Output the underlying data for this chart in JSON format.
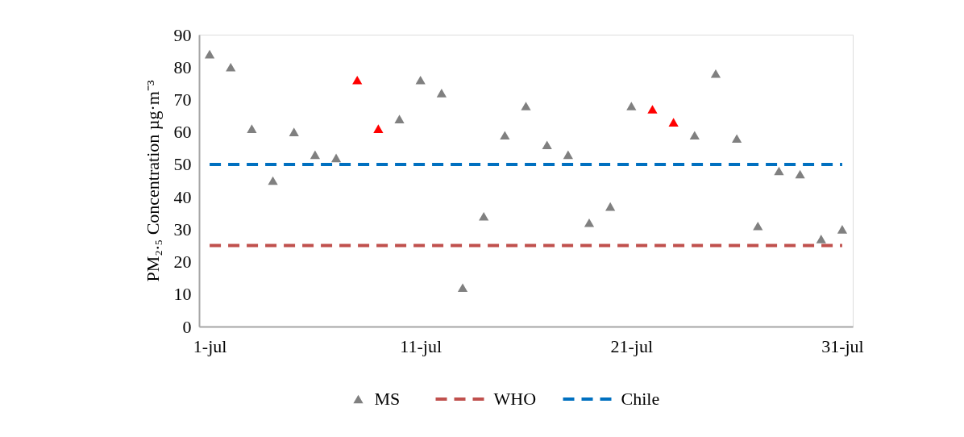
{
  "chart_data": {
    "type": "scatter",
    "ylabel": "PM₂.₅ Concentration µg·m⁻³",
    "categories": [
      "1-jul",
      null,
      null,
      null,
      null,
      null,
      null,
      null,
      null,
      null,
      "11-jul",
      null,
      null,
      null,
      null,
      null,
      null,
      null,
      null,
      null,
      "21-jul",
      null,
      null,
      null,
      null,
      null,
      null,
      null,
      null,
      null,
      "31-jul"
    ],
    "series": [
      {
        "name": "MS",
        "color": "#808080",
        "colors": [
          "#808080",
          "#808080",
          "#808080",
          "#808080",
          "#808080",
          "#808080",
          "#808080",
          "#ff0000",
          "#ff0000",
          "#808080",
          "#808080",
          "#808080",
          "#808080",
          "#808080",
          "#808080",
          "#808080",
          "#808080",
          "#808080",
          "#808080",
          "#808080",
          "#808080",
          "#ff0000",
          "#ff0000",
          "#808080",
          "#808080",
          "#808080",
          "#808080",
          "#808080",
          "#808080",
          "#808080",
          "#808080"
        ],
        "values": [
          84,
          80,
          61,
          45,
          60,
          53,
          52,
          76,
          61,
          64,
          76,
          72,
          12,
          34,
          59,
          68,
          56,
          53,
          32,
          37,
          68,
          67,
          63,
          59,
          78,
          58,
          31,
          48,
          47,
          27,
          30
        ]
      }
    ],
    "ref_lines": [
      {
        "axis": "y",
        "value": 25,
        "label": "WHO",
        "color": "#c0504d",
        "line_style": "dashed"
      },
      {
        "axis": "y",
        "value": 50,
        "label": "Chile",
        "color": "#0070c0",
        "line_style": "dashed"
      }
    ],
    "ylim": [
      0,
      90
    ],
    "yticks": [
      0,
      10,
      20,
      30,
      40,
      50,
      60,
      70,
      80,
      90
    ],
    "marker": "triangle",
    "grid": false,
    "legend": "bottom"
  }
}
